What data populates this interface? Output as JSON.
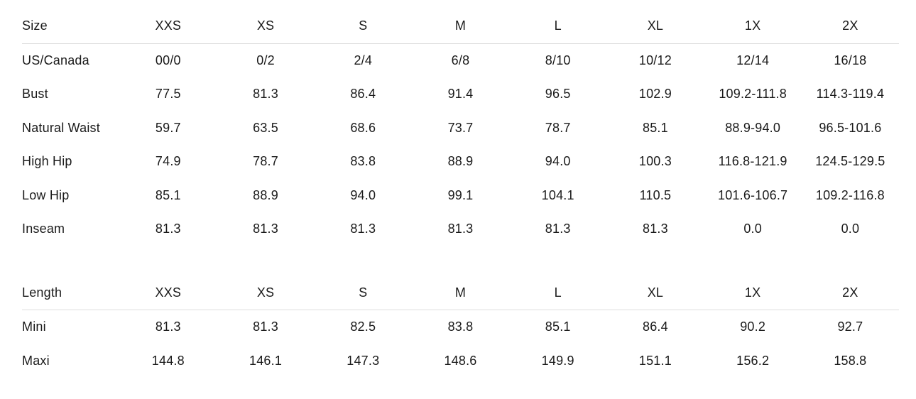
{
  "colors": {
    "background": "#ffffff",
    "text": "#1a1a1a",
    "separator_line": "#dcdcdc"
  },
  "chart_data": [
    {
      "type": "table",
      "columns": [
        "Size",
        "XXS",
        "XS",
        "S",
        "M",
        "L",
        "XL",
        "1X",
        "2X"
      ],
      "rows": [
        [
          "US/Canada",
          "00/0",
          "0/2",
          "2/4",
          "6/8",
          "8/10",
          "10/12",
          "12/14",
          "16/18"
        ],
        [
          "Bust",
          "77.5",
          "81.3",
          "86.4",
          "91.4",
          "96.5",
          "102.9",
          "109.2-111.8",
          "114.3-119.4"
        ],
        [
          "Natural Waist",
          "59.7",
          "63.5",
          "68.6",
          "73.7",
          "78.7",
          "85.1",
          "88.9-94.0",
          "96.5-101.6"
        ],
        [
          "High Hip",
          "74.9",
          "78.7",
          "83.8",
          "88.9",
          "94.0",
          "100.3",
          "116.8-121.9",
          "124.5-129.5"
        ],
        [
          "Low Hip",
          "85.1",
          "88.9",
          "94.0",
          "99.1",
          "104.1",
          "110.5",
          "101.6-106.7",
          "109.2-116.8"
        ],
        [
          "Inseam",
          "81.3",
          "81.3",
          "81.3",
          "81.3",
          "81.3",
          "81.3",
          "0.0",
          "0.0"
        ]
      ]
    },
    {
      "type": "table",
      "columns": [
        "Length",
        "XXS",
        "XS",
        "S",
        "M",
        "L",
        "XL",
        "1X",
        "2X"
      ],
      "rows": [
        [
          "Mini",
          "81.3",
          "81.3",
          "82.5",
          "83.8",
          "85.1",
          "86.4",
          "90.2",
          "92.7"
        ],
        [
          "Maxi",
          "144.8",
          "146.1",
          "147.3",
          "148.6",
          "149.9",
          "151.1",
          "156.2",
          "158.8"
        ]
      ]
    }
  ]
}
